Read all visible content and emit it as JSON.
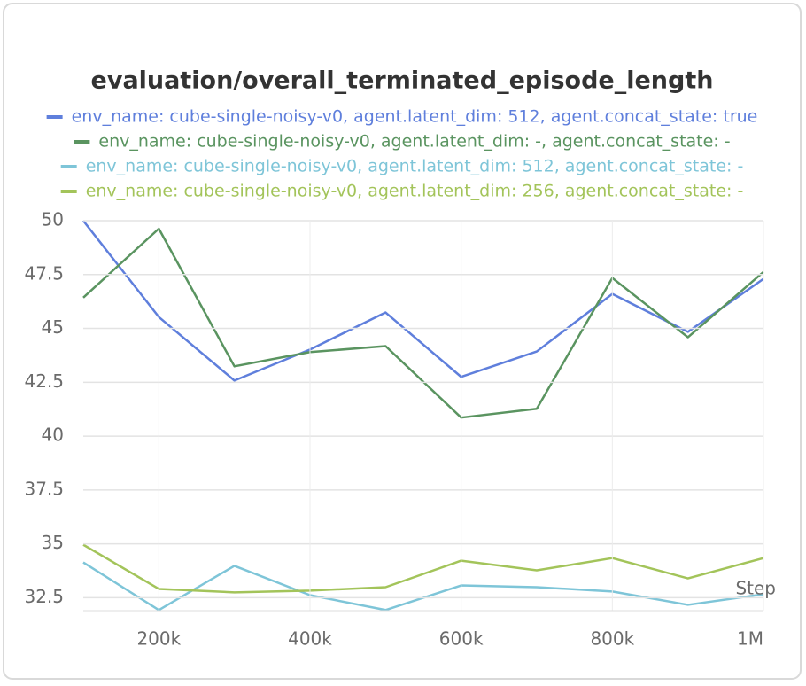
{
  "chart_data": {
    "type": "line",
    "title": "evaluation/overall_terminated_episode_length",
    "x_label": "Step",
    "x": [
      100000,
      200000,
      300000,
      400000,
      500000,
      600000,
      700000,
      800000,
      900000,
      1000000
    ],
    "xlim": [
      100000,
      1000000
    ],
    "xticks": [
      {
        "value": 200000,
        "label": "200k"
      },
      {
        "value": 400000,
        "label": "400k"
      },
      {
        "value": 600000,
        "label": "600k"
      },
      {
        "value": 800000,
        "label": "800k"
      },
      {
        "value": 1000000,
        "label": "1M"
      }
    ],
    "ylim": [
      31.9,
      50
    ],
    "yticks": [
      {
        "value": 32.5,
        "label": "32.5"
      },
      35,
      {
        "value": 37.5,
        "label": "37.5"
      },
      40,
      {
        "value": 42.5,
        "label": "42.5"
      },
      45,
      {
        "value": 47.5,
        "label": "47.5"
      },
      50
    ],
    "grid": true,
    "series": [
      {
        "name": "env_name: cube-single-noisy-v0, agent.latent_dim: 512, agent.concat_state: true",
        "color": "#5f7fdc",
        "values": [
          50,
          45.53,
          42.58,
          44.02,
          45.74,
          42.75,
          43.93,
          46.6,
          44.84,
          47.3
        ]
      },
      {
        "name": "env_name: cube-single-noisy-v0, agent.latent_dim: -, agent.concat_state: -",
        "color": "#5a9460",
        "values": [
          46.43,
          49.63,
          43.24,
          43.9,
          44.18,
          40.86,
          41.27,
          47.34,
          44.59,
          47.62
        ]
      },
      {
        "name": "env_name: cube-single-noisy-v0, agent.latent_dim: 512, agent.concat_state: -",
        "color": "#7ec5d8",
        "values": [
          34.14,
          31.93,
          33.98,
          32.62,
          31.93,
          33.07,
          32.99,
          32.79,
          32.17,
          32.66
        ]
      },
      {
        "name": "env_name: cube-single-noisy-v0, agent.latent_dim: 256, agent.concat_state: -",
        "color": "#a3c45a",
        "values": [
          34.96,
          32.91,
          32.75,
          32.83,
          32.99,
          34.22,
          33.77,
          34.34,
          33.4,
          34.34
        ]
      }
    ]
  }
}
